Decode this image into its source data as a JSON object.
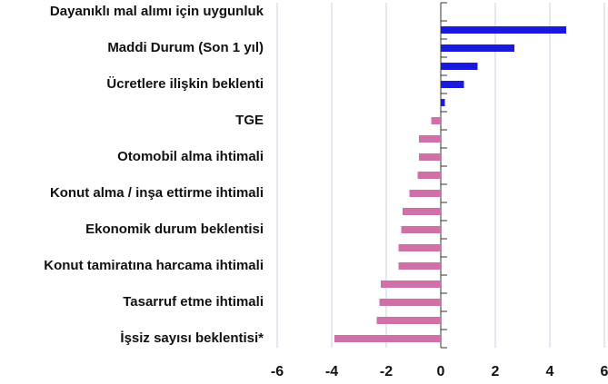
{
  "chart_data": {
    "type": "barh",
    "categories": [
      "Dayanıklı mal alımı için uygunluk",
      null,
      "Maddi Durum (Son 1 yıl)",
      null,
      "Ücretlere ilişkin beklenti",
      null,
      "TGE",
      null,
      "Otomobil alma ihtimali",
      null,
      "Konut alma / inşa ettirme ihtimali",
      null,
      "Ekonomik durum beklentisi",
      null,
      "Konut tamiratına harcama ihtimali",
      null,
      "Tasarruf etme ihtimali",
      null,
      "İşsiz sayısı beklentisi*"
    ],
    "values": [
      null,
      4.6,
      2.7,
      1.35,
      0.85,
      0.15,
      -0.35,
      -0.8,
      -0.8,
      -0.85,
      -1.15,
      -1.4,
      -1.45,
      -1.55,
      -1.55,
      -2.2,
      -2.25,
      -2.35,
      -3.9
    ],
    "positive_color": "#1a1adf",
    "negative_color": "#d070a8",
    "xlim": [
      -6,
      6
    ],
    "xticks": [
      -6,
      -4,
      -2,
      0,
      2,
      4,
      6
    ],
    "grid": true
  }
}
